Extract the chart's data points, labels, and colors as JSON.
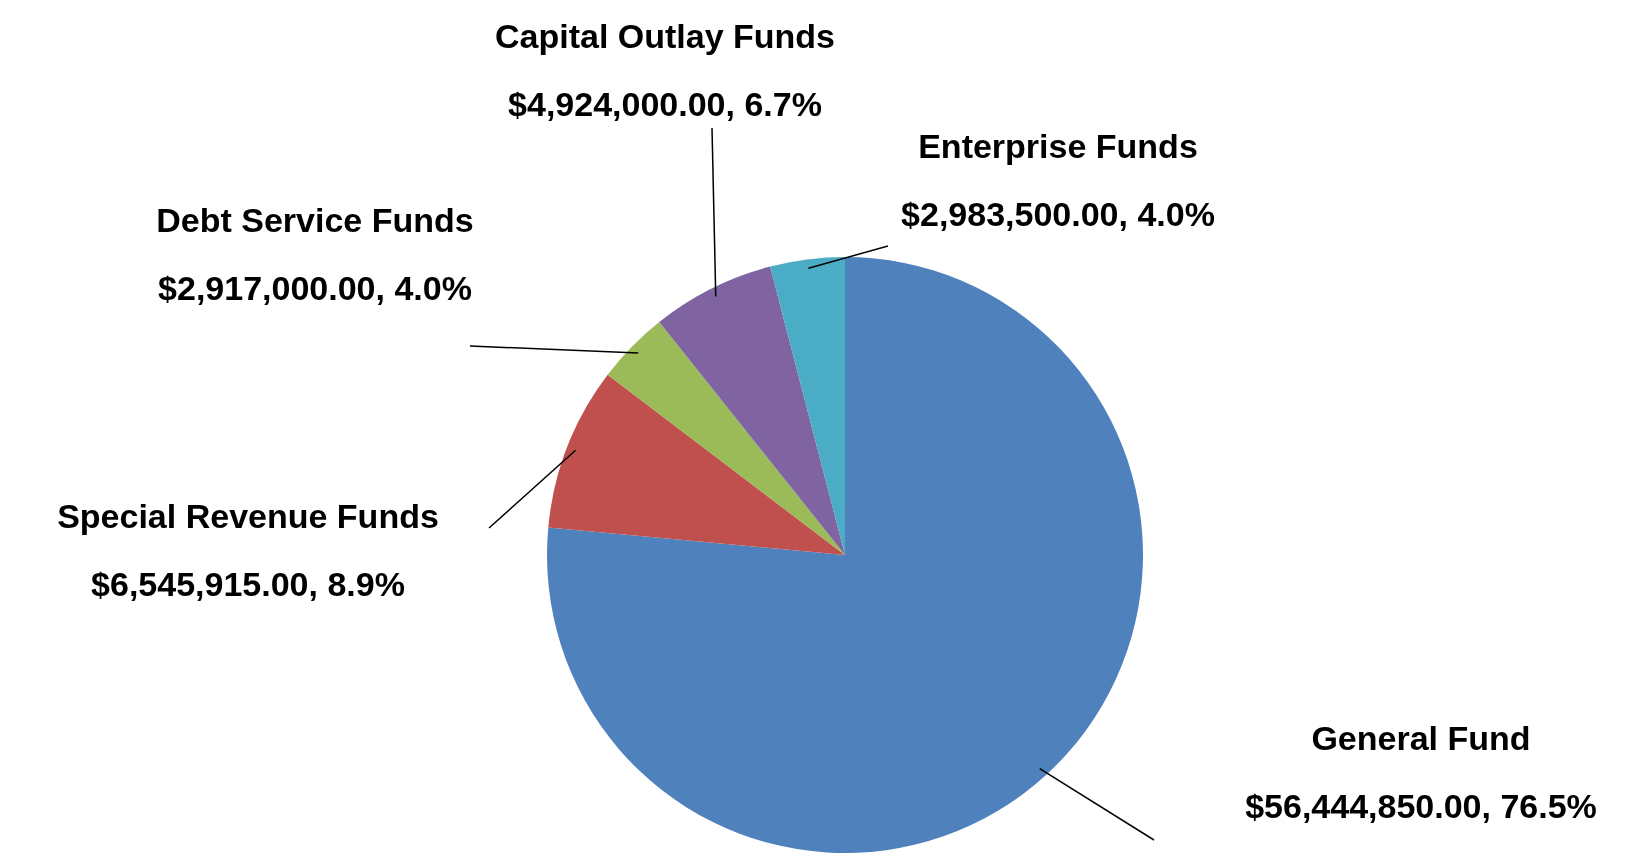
{
  "chart_data": {
    "type": "pie",
    "categories": [
      "General Fund",
      "Special Revenue Funds",
      "Debt Service Funds",
      "Capital Outlay Funds",
      "Enterprise Funds"
    ],
    "values": [
      56444850,
      6545915,
      2917000,
      4924000,
      2983500
    ],
    "colors": [
      "#4f81bd",
      "#c0504d",
      "#9bbb59",
      "#8064a2",
      "#4bacc6"
    ],
    "value_labels": [
      "$56,444,850.00, 76.5%",
      "$6,545,915.00, 8.9%",
      "$2,917,000.00, 4.0%",
      "$4,924,000.00, 6.7%",
      "$2,983,500.00, 4.0%"
    ]
  }
}
